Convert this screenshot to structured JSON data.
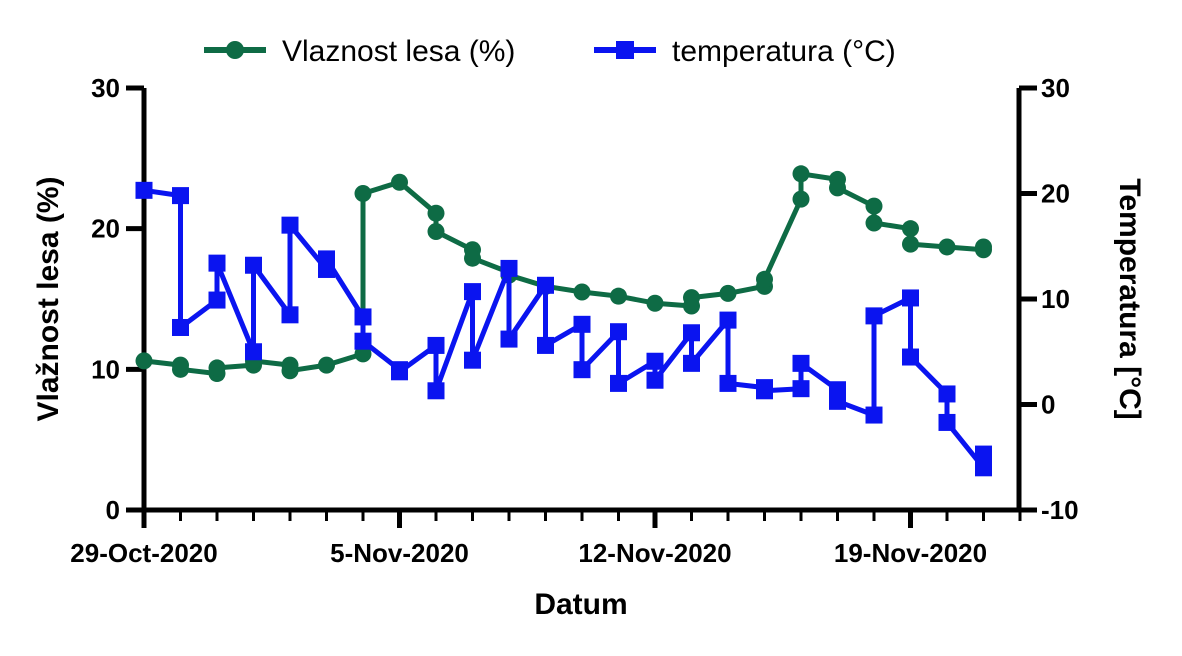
{
  "chart_data": {
    "type": "line",
    "xlabel": "Datum",
    "ylabel_left": "Vlažnost lesa (%)",
    "ylabel_right": "Temperatura [°C]",
    "x_ticks": [
      "29-Oct-2020",
      "5-Nov-2020",
      "12-Nov-2020",
      "19-Nov-2020"
    ],
    "x_tick_days": [
      0,
      7,
      14,
      21
    ],
    "x_range_days": [
      0,
      24
    ],
    "ylim_left": [
      0,
      30
    ],
    "yticks_left": [
      "0",
      "10",
      "20",
      "30"
    ],
    "ylim_right": [
      -10,
      30
    ],
    "yticks_right": [
      "-10",
      "0",
      "10",
      "20",
      "30"
    ],
    "legend_position": "top",
    "series": [
      {
        "name": "Vlaznost lesa (%)",
        "axis": "left",
        "color": "#0e6b45",
        "marker": "circle",
        "points": [
          [
            0,
            10.6
          ],
          [
            1,
            10.3
          ],
          [
            1,
            10.0
          ],
          [
            2,
            9.7
          ],
          [
            2,
            10.1
          ],
          [
            3,
            10.3
          ],
          [
            3,
            10.6
          ],
          [
            4,
            10.3
          ],
          [
            4,
            9.9
          ],
          [
            5,
            10.3
          ],
          [
            6,
            11.1
          ],
          [
            6,
            22.5
          ],
          [
            7,
            23.3
          ],
          [
            8,
            21.1
          ],
          [
            8,
            19.8
          ],
          [
            9,
            18.5
          ],
          [
            9,
            17.9
          ],
          [
            10,
            16.9
          ],
          [
            10,
            16.7
          ],
          [
            11,
            15.9
          ],
          [
            12,
            15.5
          ],
          [
            13,
            15.2
          ],
          [
            14,
            14.7
          ],
          [
            15,
            14.5
          ],
          [
            15,
            15.1
          ],
          [
            16,
            15.4
          ],
          [
            17,
            15.9
          ],
          [
            17,
            16.4
          ],
          [
            18,
            22.1
          ],
          [
            18,
            23.9
          ],
          [
            19,
            23.5
          ],
          [
            19,
            22.9
          ],
          [
            20,
            21.6
          ],
          [
            20,
            20.4
          ],
          [
            21,
            20.0
          ],
          [
            21,
            18.9
          ],
          [
            22,
            18.7
          ],
          [
            23,
            18.5
          ],
          [
            23,
            18.7
          ]
        ]
      },
      {
        "name": "temperatura (°C)",
        "axis": "right",
        "color": "#0a14f0",
        "marker": "square",
        "points": [
          [
            0,
            20.3
          ],
          [
            1,
            19.8
          ],
          [
            1,
            7.3
          ],
          [
            2,
            9.9
          ],
          [
            2,
            13.4
          ],
          [
            3,
            5.0
          ],
          [
            3,
            13.2
          ],
          [
            4,
            8.5
          ],
          [
            4,
            17.0
          ],
          [
            5,
            12.8
          ],
          [
            5,
            13.8
          ],
          [
            6,
            8.3
          ],
          [
            6,
            6.0
          ],
          [
            7,
            3.3
          ],
          [
            7,
            3.1
          ],
          [
            8,
            5.6
          ],
          [
            8,
            1.3
          ],
          [
            9,
            10.7
          ],
          [
            9,
            4.2
          ],
          [
            10,
            12.9
          ],
          [
            10,
            6.2
          ],
          [
            11,
            11.3
          ],
          [
            11,
            5.6
          ],
          [
            12,
            7.6
          ],
          [
            12,
            3.3
          ],
          [
            13,
            6.9
          ],
          [
            13,
            2.0
          ],
          [
            14,
            4.1
          ],
          [
            14,
            2.3
          ],
          [
            15,
            6.8
          ],
          [
            15,
            3.9
          ],
          [
            16,
            8.0
          ],
          [
            16,
            2.0
          ],
          [
            17,
            1.6
          ],
          [
            17,
            1.3
          ],
          [
            18,
            1.5
          ],
          [
            18,
            3.9
          ],
          [
            19,
            1.4
          ],
          [
            19,
            0.3
          ],
          [
            20,
            -1.0
          ],
          [
            20,
            8.4
          ],
          [
            21,
            10.1
          ],
          [
            21,
            4.5
          ],
          [
            22,
            1.0
          ],
          [
            22,
            -1.7
          ],
          [
            23,
            -6.0
          ],
          [
            23,
            -4.7
          ]
        ]
      }
    ]
  }
}
